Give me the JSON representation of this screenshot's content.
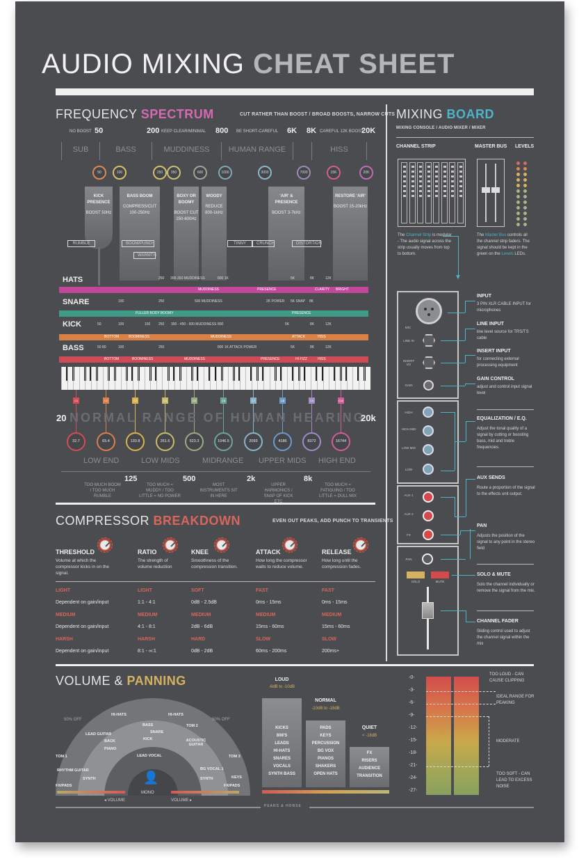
{
  "header": {
    "title_light": "AUDIO MIXING",
    "title_bold": "CHEAT SHEET"
  },
  "frequency": {
    "title_light": "FREQUENCY",
    "title_bold": "SPECTRUM",
    "accent": "#d46bb1",
    "tagline": "CUT RATHER THAN BOOST / BROAD BOOSTS, NARROW CUTS",
    "scale": [
      {
        "note": "NO BOOST",
        "value": "50"
      },
      {
        "note": "",
        "value": "200"
      },
      {
        "note": "KEEP CLEAR/MINIMAL",
        "value": "800"
      },
      {
        "note": "BE SHORT-CAREFUL",
        "value": "6K"
      },
      {
        "note": "",
        "value": "8K"
      },
      {
        "note": "CAREFUL 12K BOOST",
        "value": "20K"
      }
    ],
    "regions": [
      "SUB",
      "BASS",
      "MUDDINESS",
      "HUMAN RANGE",
      "HISS"
    ],
    "markers": [
      {
        "hz": "50",
        "color": "#d98a55"
      },
      {
        "hz": "100",
        "color": "#d9c06a"
      },
      {
        "hz": "250",
        "color": "#cfc16d"
      },
      {
        "hz": "350",
        "color": "#c6c27a"
      },
      {
        "hz": "600",
        "color": "#9aa88e"
      },
      {
        "hz": "1000",
        "color": "#7fa6b4"
      },
      {
        "hz": "3000",
        "color": "#8fb5c6"
      },
      {
        "hz": "7000",
        "color": "#9d8bb4"
      },
      {
        "hz": "15K",
        "color": "#d1608a"
      },
      {
        "hz": "20K",
        "color": "#c46bb5"
      }
    ],
    "columns": [
      {
        "title": "KICK PRESENCE",
        "action": "BOOST 50Hz"
      },
      {
        "title": "BASS BOOM",
        "action": "COMPRESS/CUT 100-250Hz"
      },
      {
        "title": "BOXY OR BOOMY",
        "action": "BOOST CUT 250-600Hz"
      },
      {
        "title": "WOODY",
        "action": "REDUCE 600-1kHz"
      },
      {
        "title": "'AIR' & PRESENCE",
        "action": "BOOST 3-7kHz"
      },
      {
        "title": "RESTORE 'AIR'",
        "action": "BOOST 15-20kHz"
      }
    ],
    "brackets": [
      "RUMBLE",
      "BOOM/PUNCH",
      "WARMTH",
      "TINNY",
      "CRUNCH",
      "DISTORTION"
    ],
    "bands": [
      {
        "label": "HATS",
        "color": "#c2479a",
        "segments": [
          "MUDDINESS",
          "PRESENCE",
          "CLARITY",
          "BRIGHT"
        ],
        "ticks": [
          "250",
          "300-350 MUDDINESS",
          "800 1K",
          "5K",
          "8K",
          "12K"
        ]
      },
      {
        "label": "SNARE",
        "color": "#3f9a88",
        "segments": [
          "FULLER BODY BOOMY",
          "PRESENCE"
        ],
        "ticks": [
          "100",
          "250",
          "500 MUDDINESS",
          "2K POWER",
          "5K SNAP",
          "8K"
        ]
      },
      {
        "label": "KICK",
        "color": "#d98045",
        "segments": [
          "BOTTOM",
          "BOOMINESS",
          "MUDDINESS",
          "ATTACK",
          "HISS"
        ],
        "ticks": [
          "50",
          "100",
          "150",
          "250",
          "300 - 450 - 600 MUDDINESS",
          "800",
          "5K",
          "8K",
          "12K"
        ]
      },
      {
        "label": "BASS",
        "color": "#cf4a57",
        "segments": [
          "BOTTOM",
          "BOOMINESS",
          "MUDDINESS",
          "PRESENCE",
          "HI FIZZ",
          "HISS"
        ],
        "ticks": [
          "50 80",
          "100",
          "250",
          "800 1K ATTACK POWER",
          "5K",
          "8K",
          "12K"
        ]
      }
    ],
    "notes": [
      {
        "n": "C1",
        "color": "#d14d57"
      },
      {
        "n": "C2",
        "color": "#d9804e"
      },
      {
        "n": "C3",
        "color": "#d9b44e"
      },
      {
        "n": "C4",
        "color": "#c9bd6b"
      },
      {
        "n": "C5",
        "color": "#9aac86"
      },
      {
        "n": "C6",
        "color": "#6fa39b"
      },
      {
        "n": "C7",
        "color": "#8ab5c9"
      },
      {
        "n": "C8",
        "color": "#6f9ac9"
      },
      {
        "n": "C9",
        "color": "#a38bc6"
      },
      {
        "n": "C10",
        "color": "#d15e9a"
      }
    ],
    "hearing_min": "20",
    "hearing_max": "20k",
    "hearing_label": "NORMAL RANGE OF HUMAN HEARING",
    "pitch_hz": [
      "32.7",
      "65.4",
      "130.8",
      "261.6",
      "523.3",
      "1046.5",
      "2093",
      "4186",
      "8372",
      "16744"
    ],
    "ranges": [
      "LOW END",
      "LOW MIDS",
      "MIDRANGE",
      "UPPER MIDS",
      "HIGH END"
    ],
    "range_bounds": [
      "125",
      "500",
      "2k",
      "8k"
    ],
    "range_notes": [
      "TOO MUCH BOOM / TOO MUCH RUMBLE",
      "TOO MUCH = MUDDY / TOO LITTLE = NO POWER",
      "MOST INSTRUMENTS SIT IN HERE",
      "UPPER HARMONICS / SNAP OF KICK ETC",
      "TOO MUCH = FATIGUING / TOO LITTLE = DULL MIX"
    ]
  },
  "compressor": {
    "title_light": "COMPRESSOR",
    "title_bold": "BREAKDOWN",
    "accent": "#d9665c",
    "tagline": "EVEN OUT PEAKS, ADD PUNCH TO TRANSIENTS",
    "params": [
      {
        "name": "THRESHOLD",
        "desc": "Volume at which the compressor kicks in on the signal."
      },
      {
        "name": "RATIO",
        "desc": "The strength of volume reduction"
      },
      {
        "name": "KNEE",
        "desc": "Smoothness of the compression transition."
      },
      {
        "name": "ATTACK",
        "desc": "How long the compressor waits to reduce volume."
      },
      {
        "name": "RELEASE",
        "desc": "How long until the compression fades."
      }
    ],
    "table": [
      [
        {
          "k": "LIGHT",
          "v": "Dependent on gain/input"
        },
        {
          "k": "LIGHT",
          "v": "1:1 - 4:1"
        },
        {
          "k": "SOFT",
          "v": "0dB - 2.5dB"
        },
        {
          "k": "FAST",
          "v": "0ms - 15ms"
        },
        {
          "k": "FAST",
          "v": "0ms - 15ms"
        }
      ],
      [
        {
          "k": "MEDIUM",
          "v": "Dependent on gain/input"
        },
        {
          "k": "MEDIUM",
          "v": "4:1 - 8:1"
        },
        {
          "k": "MEDIUM",
          "v": "2dB - 6dB"
        },
        {
          "k": "MEDIUM",
          "v": "15ms - 60ms"
        },
        {
          "k": "MEDIUM",
          "v": "15ms - 60ms"
        }
      ],
      [
        {
          "k": "HARSH",
          "v": "Dependent on gain/input"
        },
        {
          "k": "HARSH",
          "v": "8:1 - ∞:1"
        },
        {
          "k": "HARD",
          "v": "0dB - 2dB"
        },
        {
          "k": "SLOW",
          "v": "60ms - 200ms"
        },
        {
          "k": "SLOW",
          "v": "200ms+"
        }
      ]
    ]
  },
  "mixing_board": {
    "title_light": "MIXING",
    "title_bold": "BOARD",
    "accent": "#4fb3c9",
    "subtitle": "MIXING CONSOLE / AUDIO MIXER / MIXER",
    "labels": {
      "channel_strip": "CHANNEL STRIP",
      "master_bus": "MASTER BUS",
      "levels": "LEVELS"
    },
    "channel_desc_pre": "The",
    "channel_desc_hl": "Channel Strip",
    "channel_desc_post": "is modular - The audio signal across the strip usually moves from top to bottom.",
    "master_desc_pre": "The",
    "master_desc_hl": "Master Bus",
    "master_desc_mid": "controls all the channel strip faders. The signal should be kept in the green on the",
    "master_desc_hl2": "Levels",
    "master_desc_post": "LEDs.",
    "strip_labels": {
      "mic": "MIC",
      "line_in": "LINE IN",
      "insert": "INSERT I/O",
      "gain": "GAIN",
      "high": "HIGH",
      "high_mid": "HIGH MID",
      "low_mid": "LOW MID",
      "low": "LOW",
      "aux1": "AUX 1",
      "aux2": "AUX 2",
      "fx": "FX",
      "pan": "PAN",
      "solo": "SOLO",
      "mute": "MUTE"
    },
    "sections": [
      {
        "title": "INPUT",
        "desc": "3 PIN XLR CABLE INPUT for microphones"
      },
      {
        "title": "LINE INPUT",
        "desc": "line level source for TRS/TS cable"
      },
      {
        "title": "INSERT INPUT",
        "desc": "for connecting external processing equipment"
      },
      {
        "title": "GAIN CONTROL",
        "desc": "adjust and control input signal level"
      },
      {
        "title": "EQUALIZATION / E.Q.",
        "desc": "Adjust the tonal quality of a signal by cutting or boosting bass, mid and treble frequencies."
      },
      {
        "title": "AUX SENDS",
        "desc": "Route a proportion of the signal to the effects unit output."
      },
      {
        "title": "PAN",
        "desc": "Adjusts the position of the signal to any point in the stereo field"
      },
      {
        "title": "SOLO & MUTE",
        "desc": "Solo the channel individually or remove the signal from the mix."
      },
      {
        "title": "CHANNEL FADER",
        "desc": "Sliding control used to adjust the channel signal within the mix"
      }
    ]
  },
  "volume": {
    "title_light": "VOLUME &",
    "title_bold": "PANNING",
    "accent": "#d6b260",
    "pan_left": "50% OFF",
    "pan_right": "50% OFF",
    "pan_items": {
      "outer": [
        "HI-HATS",
        "HI-HATS",
        "TOM 1",
        "TOM 2",
        "TOM 3",
        "RHYTHM GUITAR",
        "KEYS",
        "FX/PADS",
        "FX/PADS"
      ],
      "middle": [
        "LEAD GUITAR",
        "BASS",
        "SNARE",
        "KICK",
        "BACK",
        "ACOUSTIC GUITAR",
        "PIANO",
        "SYNTH",
        "BG VOCAL 1",
        "SYNTH"
      ],
      "inner": [
        "LEAD VOCAL"
      ]
    },
    "mono": "MONO",
    "vol_left": "◂ VOLUME",
    "vol_right": "VOLUME ▸",
    "levels": [
      {
        "name": "LOUD",
        "range": "-6dB to -10dB",
        "items": [
          "KICKS",
          "808'S",
          "LEADS",
          "HI-HATS",
          "SNARES",
          "VOCALS",
          "SYNTH BASS"
        ]
      },
      {
        "name": "NORMAL",
        "range": "-10dB to -18dB",
        "items": [
          "PADS",
          "KEYS",
          "PERCUSSION",
          "BG VOX",
          "PIANOS",
          "SHAKERS",
          "OPEN HATS"
        ]
      },
      {
        "name": "QUIET",
        "range": "< -18dB",
        "items": [
          "FX",
          "RISERS",
          "AUDIENCE",
          "TRANSITION"
        ]
      }
    ],
    "meter_scale": [
      "-0-",
      "-3-",
      "-6-",
      "-9-",
      "-12-",
      "-15-",
      "-18-",
      "-21-",
      "-24-",
      "-27-"
    ],
    "meter_notes": [
      "TOO LOUD - CAN CAUSE CLIPPING",
      "IDEAL RANGE FOR PEAKING",
      "MODERATE",
      "TOO SOFT - CAN LEAD TO EXCESS NOISE"
    ]
  },
  "footer": {
    "credit": "PEARS & HORSE"
  }
}
